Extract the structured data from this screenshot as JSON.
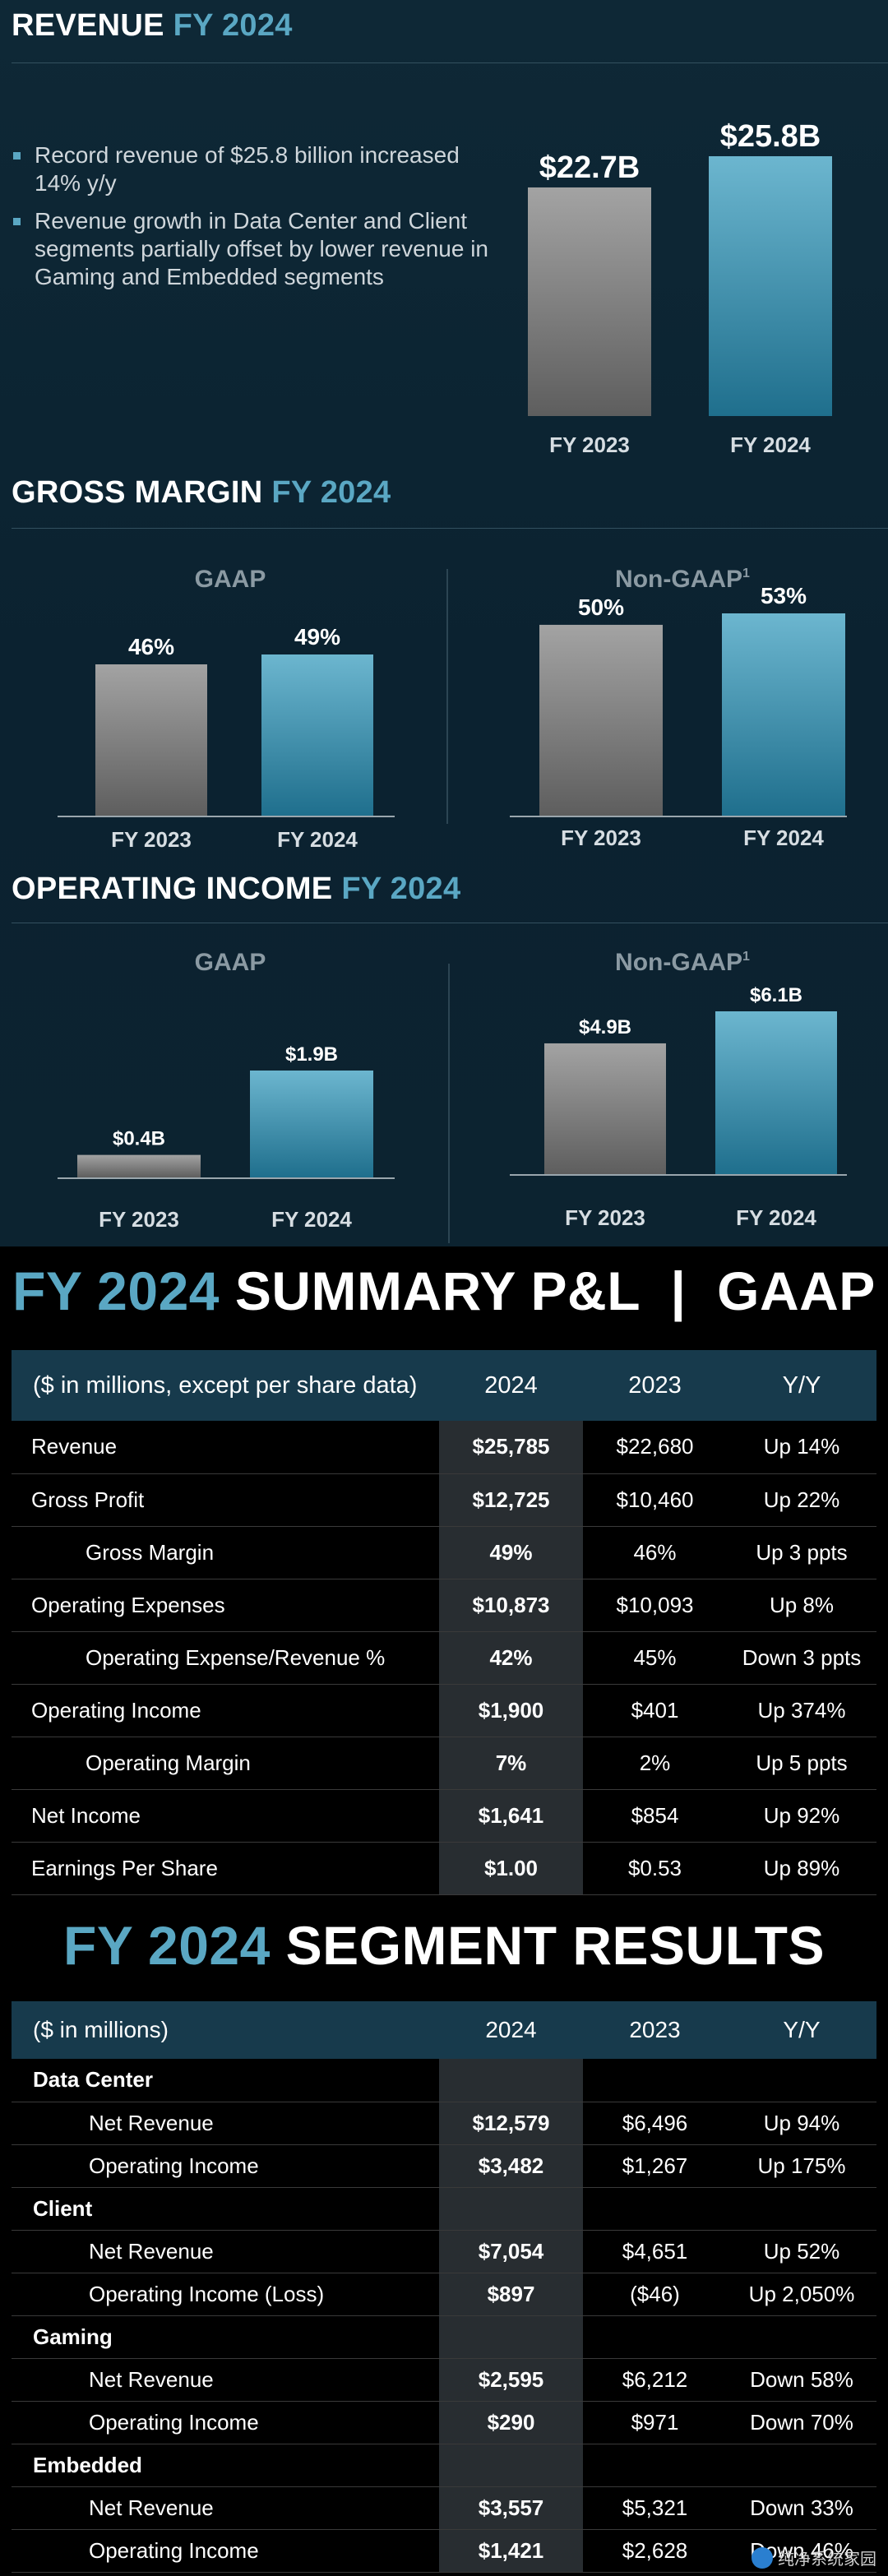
{
  "revenue": {
    "title": "REVENUE",
    "title_hl": "FY 2024",
    "bullets": [
      "Record revenue of $25.8 billion increased 14% y/y",
      "Revenue growth in Data Center and Client segments partially offset by lower revenue in Gaming and Embedded segments"
    ]
  },
  "gross_margin": {
    "title": "GROSS MARGIN",
    "title_hl": "FY 2024"
  },
  "operating_income": {
    "title": "OPERATING INCOME",
    "title_hl": "FY 2024"
  },
  "chart_data": [
    {
      "id": "revenue",
      "type": "bar",
      "title": "REVENUE FY 2024",
      "categories": [
        "FY 2023",
        "FY 2024"
      ],
      "values": [
        22.7,
        25.8
      ],
      "data_labels": [
        "$22.7B",
        "$25.8B"
      ],
      "unit": "$B",
      "colors": [
        "#8a8a8a",
        "#3d9ab8"
      ]
    },
    {
      "id": "gross-margin-gaap",
      "type": "bar",
      "title": "GAAP",
      "categories": [
        "FY 2023",
        "FY 2024"
      ],
      "values": [
        46,
        49
      ],
      "data_labels": [
        "46%",
        "49%"
      ],
      "unit": "%"
    },
    {
      "id": "gross-margin-nongaap",
      "type": "bar",
      "title": "Non-GAAP",
      "title_sup": "1",
      "categories": [
        "FY 2023",
        "FY 2024"
      ],
      "values": [
        50,
        53
      ],
      "data_labels": [
        "50%",
        "53%"
      ],
      "unit": "%"
    },
    {
      "id": "op-income-gaap",
      "type": "bar",
      "title": "GAAP",
      "categories": [
        "FY 2023",
        "FY 2024"
      ],
      "values": [
        0.4,
        1.9
      ],
      "data_labels": [
        "$0.4B",
        "$1.9B"
      ],
      "unit": "$B"
    },
    {
      "id": "op-income-nongaap",
      "type": "bar",
      "title": "Non-GAAP",
      "title_sup": "1",
      "categories": [
        "FY 2023",
        "FY 2024"
      ],
      "values": [
        4.9,
        6.1
      ],
      "data_labels": [
        "$4.9B",
        "$6.1B"
      ],
      "unit": "$B"
    }
  ],
  "summary": {
    "title_hl": "FY 2024",
    "title": "SUMMARY P&L  |  GAAP",
    "headers": [
      "($ in millions, except per share data)",
      "2024",
      "2023",
      "Y/Y"
    ],
    "rows": [
      {
        "name": "Revenue",
        "v2024": "$25,785",
        "v2023": "$22,680",
        "yy": "Up 14%",
        "indent": false
      },
      {
        "name": "Gross Profit",
        "v2024": "$12,725",
        "v2023": "$10,460",
        "yy": "Up 22%",
        "indent": false
      },
      {
        "name": "Gross Margin",
        "v2024": "49%",
        "v2023": "46%",
        "yy": "Up 3 ppts",
        "indent": true
      },
      {
        "name": "Operating Expenses",
        "v2024": "$10,873",
        "v2023": "$10,093",
        "yy": "Up 8%",
        "indent": false
      },
      {
        "name": "Operating Expense/Revenue %",
        "v2024": "42%",
        "v2023": "45%",
        "yy": "Down 3 ppts",
        "indent": true
      },
      {
        "name": "Operating Income",
        "v2024": "$1,900",
        "v2023": "$401",
        "yy": "Up 374%",
        "indent": false
      },
      {
        "name": "Operating Margin",
        "v2024": "7%",
        "v2023": "2%",
        "yy": "Up 5 ppts",
        "indent": true
      },
      {
        "name": "Net Income",
        "v2024": "$1,641",
        "v2023": "$854",
        "yy": "Up 92%",
        "indent": false
      },
      {
        "name": "Earnings Per Share",
        "v2024": "$1.00",
        "v2023": "$0.53",
        "yy": "Up 89%",
        "indent": false
      }
    ]
  },
  "segments": {
    "title_hl": "FY 2024",
    "title": "SEGMENT RESULTS",
    "headers": [
      "($ in millions)",
      "2024",
      "2023",
      "Y/Y"
    ],
    "groups": [
      {
        "name": "Data Center",
        "rows": [
          {
            "name": "Net Revenue",
            "v2024": "$12,579",
            "v2023": "$6,496",
            "yy": "Up 94%"
          },
          {
            "name": "Operating Income",
            "v2024": "$3,482",
            "v2023": "$1,267",
            "yy": "Up 175%"
          }
        ]
      },
      {
        "name": "Client",
        "rows": [
          {
            "name": "Net Revenue",
            "v2024": "$7,054",
            "v2023": "$4,651",
            "yy": "Up 52%"
          },
          {
            "name": "Operating Income (Loss)",
            "v2024": "$897",
            "v2023": "($46)",
            "yy": "Up 2,050%"
          }
        ]
      },
      {
        "name": "Gaming",
        "rows": [
          {
            "name": "Net Revenue",
            "v2024": "$2,595",
            "v2023": "$6,212",
            "yy": "Down 58%"
          },
          {
            "name": "Operating Income",
            "v2024": "$290",
            "v2023": "$971",
            "yy": "Down 70%"
          }
        ]
      },
      {
        "name": "Embedded",
        "rows": [
          {
            "name": "Net Revenue",
            "v2024": "$3,557",
            "v2023": "$5,321",
            "yy": "Down 33%"
          },
          {
            "name": "Operating Income",
            "v2024": "$1,421",
            "v2023": "$2,628",
            "yy": "Down 46%"
          }
        ]
      }
    ]
  },
  "watermark": {
    "text": "纯净系统家园"
  }
}
